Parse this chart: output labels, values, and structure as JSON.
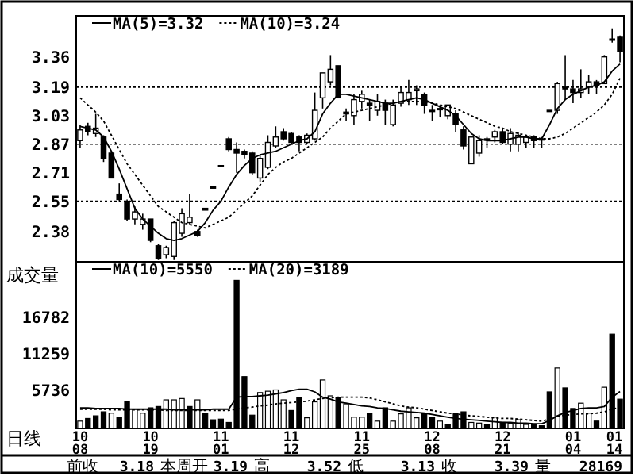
{
  "chart_data": [
    {
      "type": "candlestick",
      "categories": [
        null,
        null,
        null,
        null,
        null,
        null,
        null,
        null,
        null,
        null,
        null,
        null,
        null,
        null,
        null,
        null,
        null,
        null,
        null,
        null,
        null,
        null,
        null,
        null,
        null,
        null,
        null,
        null,
        null,
        null,
        null,
        null,
        null,
        null,
        null,
        null,
        null,
        null,
        null,
        null,
        null,
        null,
        null,
        null,
        null,
        null,
        null,
        null,
        null,
        null,
        null,
        null,
        null,
        null,
        null,
        null,
        null,
        null,
        null,
        null,
        null,
        null,
        null,
        null,
        null,
        null,
        null,
        null,
        null,
        null
      ],
      "ohlc": [
        [
          2.89,
          2.98,
          2.85,
          2.95
        ],
        [
          2.97,
          2.99,
          2.92,
          2.94
        ],
        [
          2.93,
          3.04,
          2.91,
          2.96
        ],
        [
          2.91,
          2.92,
          2.77,
          2.79
        ],
        [
          2.82,
          2.83,
          2.68,
          2.68
        ],
        [
          2.59,
          2.65,
          2.55,
          2.56
        ],
        [
          2.55,
          2.56,
          2.44,
          2.45
        ],
        [
          2.45,
          2.52,
          2.42,
          2.49
        ],
        [
          2.42,
          2.48,
          2.39,
          2.45
        ],
        [
          2.45,
          2.45,
          2.32,
          2.33
        ],
        [
          2.3,
          2.31,
          2.22,
          2.23
        ],
        [
          2.25,
          2.3,
          2.23,
          2.29
        ],
        [
          2.24,
          2.44,
          2.22,
          2.43
        ],
        [
          2.37,
          2.51,
          2.35,
          2.48
        ],
        [
          2.43,
          2.59,
          2.42,
          2.46
        ],
        [
          2.38,
          2.39,
          2.35,
          2.36
        ],
        [
          2.51,
          2.51,
          2.5,
          2.5
        ],
        [
          2.63,
          2.63,
          2.63,
          2.63
        ],
        [
          2.75,
          2.75,
          2.75,
          2.75
        ],
        [
          2.9,
          2.91,
          2.83,
          2.84
        ],
        [
          2.84,
          2.88,
          2.71,
          2.82
        ],
        [
          2.83,
          2.84,
          2.79,
          2.81
        ],
        [
          2.82,
          2.83,
          2.7,
          2.71
        ],
        [
          2.68,
          2.81,
          2.66,
          2.79
        ],
        [
          2.74,
          2.92,
          2.73,
          2.88
        ],
        [
          2.86,
          2.97,
          2.85,
          2.91
        ],
        [
          2.94,
          2.96,
          2.89,
          2.9
        ],
        [
          2.93,
          2.94,
          2.87,
          2.88
        ],
        [
          2.91,
          2.92,
          2.83,
          2.88
        ],
        [
          2.88,
          2.93,
          2.87,
          2.92
        ],
        [
          2.9,
          3.16,
          2.89,
          3.06
        ],
        [
          3.13,
          3.27,
          3.07,
          3.27
        ],
        [
          3.22,
          3.37,
          3.2,
          3.29
        ],
        [
          3.31,
          3.31,
          3.13,
          3.13
        ],
        [
          3.05,
          3.07,
          3.0,
          3.04
        ],
        [
          3.03,
          3.15,
          2.98,
          3.12
        ],
        [
          3.11,
          3.17,
          3.07,
          3.15
        ],
        [
          3.1,
          3.12,
          3.0,
          3.09
        ],
        [
          3.06,
          3.15,
          3.03,
          3.11
        ],
        [
          3.1,
          3.12,
          2.98,
          3.06
        ],
        [
          2.98,
          3.12,
          2.97,
          3.09
        ],
        [
          3.1,
          3.19,
          3.08,
          3.16
        ],
        [
          3.12,
          3.23,
          3.09,
          3.16
        ],
        [
          3.17,
          3.2,
          3.09,
          3.18
        ],
        [
          3.15,
          3.16,
          3.04,
          3.09
        ],
        [
          3.06,
          3.09,
          3.0,
          3.06
        ],
        [
          3.07,
          3.09,
          3.02,
          3.07
        ],
        [
          3.03,
          3.09,
          3.01,
          3.09
        ],
        [
          3.04,
          3.06,
          2.94,
          2.98
        ],
        [
          2.95,
          2.97,
          2.84,
          2.86
        ],
        [
          2.76,
          2.91,
          2.76,
          2.91
        ],
        [
          2.82,
          2.92,
          2.8,
          2.89
        ],
        [
          2.9,
          2.91,
          2.85,
          2.9
        ],
        [
          2.91,
          2.95,
          2.88,
          2.94
        ],
        [
          2.94,
          2.96,
          2.87,
          2.88
        ],
        [
          2.87,
          2.96,
          2.83,
          2.93
        ],
        [
          2.87,
          2.94,
          2.83,
          2.92
        ],
        [
          2.88,
          2.92,
          2.85,
          2.91
        ],
        [
          2.91,
          2.92,
          2.85,
          2.89
        ],
        [
          2.9,
          2.91,
          2.85,
          2.9
        ],
        [
          3.06,
          3.06,
          3.06,
          3.06
        ],
        [
          3.06,
          3.22,
          3.04,
          3.21
        ],
        [
          3.19,
          3.37,
          3.12,
          3.18
        ],
        [
          3.18,
          3.23,
          3.1,
          3.16
        ],
        [
          3.16,
          3.29,
          3.13,
          3.18
        ],
        [
          3.19,
          3.26,
          3.15,
          3.22
        ],
        [
          3.22,
          3.23,
          3.15,
          3.2
        ],
        [
          3.21,
          3.37,
          3.21,
          3.36
        ],
        [
          3.46,
          3.52,
          3.44,
          3.46
        ],
        [
          3.47,
          3.48,
          3.33,
          3.39
        ]
      ],
      "series": [
        {
          "name": "MA(5)=3.32",
          "type": "line",
          "color": "#000000",
          "line_style": "solid",
          "values": [
            2.97,
            2.96,
            2.95,
            2.91,
            2.83,
            2.73,
            2.62,
            2.51,
            2.45,
            2.41,
            2.37,
            2.34,
            2.33,
            2.34,
            2.36,
            2.38,
            2.43,
            2.5,
            2.55,
            2.63,
            2.7,
            2.75,
            2.79,
            2.81,
            2.82,
            2.83,
            2.85,
            2.87,
            2.89,
            2.9,
            2.94,
            3.04,
            3.1,
            3.15,
            3.15,
            3.14,
            3.13,
            3.12,
            3.11,
            3.1,
            3.1,
            3.11,
            3.12,
            3.13,
            3.12,
            3.1,
            3.08,
            3.06,
            3.03,
            2.98,
            2.93,
            2.9,
            2.89,
            2.89,
            2.89,
            2.9,
            2.91,
            2.91,
            2.9,
            2.9,
            2.98,
            3.07,
            3.12,
            3.15,
            3.17,
            3.19,
            3.2,
            3.22,
            3.28,
            3.32
          ]
        },
        {
          "name": "MA(10)=3.24",
          "type": "line",
          "color": "#000000",
          "line_style": "dotted",
          "values": [
            3.13,
            3.09,
            3.05,
            3.0,
            2.92,
            2.84,
            2.76,
            2.7,
            2.64,
            2.58,
            2.52,
            2.49,
            2.46,
            2.43,
            2.42,
            2.41,
            2.4,
            2.42,
            2.44,
            2.46,
            2.5,
            2.54,
            2.58,
            2.64,
            2.7,
            2.74,
            2.77,
            2.79,
            2.82,
            2.85,
            2.88,
            2.91,
            2.96,
            3.0,
            3.04,
            3.05,
            3.06,
            3.07,
            3.08,
            3.09,
            3.1,
            3.11,
            3.11,
            3.11,
            3.11,
            3.1,
            3.09,
            3.08,
            3.07,
            3.05,
            3.03,
            3.01,
            2.99,
            2.97,
            2.96,
            2.94,
            2.93,
            2.92,
            2.91,
            2.9,
            2.9,
            2.91,
            2.93,
            2.96,
            2.99,
            3.02,
            3.05,
            3.09,
            3.15,
            3.24
          ]
        }
      ],
      "ylim": [
        2.21,
        3.59
      ],
      "yticks": [
        2.38,
        2.55,
        2.71,
        2.87,
        3.03,
        3.19,
        3.36
      ],
      "ref_lines": [
        {
          "axis": "y",
          "value": 3.19,
          "line_style": "dotted",
          "color": "#000000"
        },
        {
          "axis": "y",
          "value": 2.87,
          "line_style": "dotted",
          "color": "#000000"
        },
        {
          "axis": "y",
          "value": 2.55,
          "line_style": "dotted",
          "color": "#000000"
        }
      ],
      "legend": "top left",
      "tick_labels": "y"
    },
    {
      "type": "bar",
      "categories": [
        "10\n08",
        null,
        null,
        null,
        null,
        null,
        null,
        null,
        null,
        "10\n19",
        null,
        null,
        null,
        null,
        null,
        null,
        null,
        null,
        "11\n01",
        null,
        null,
        null,
        null,
        null,
        null,
        null,
        null,
        "11\n12",
        null,
        null,
        null,
        null,
        null,
        null,
        null,
        null,
        "11\n25",
        null,
        null,
        null,
        null,
        null,
        null,
        null,
        null,
        "12\n08",
        null,
        null,
        null,
        null,
        null,
        null,
        null,
        null,
        "12\n21",
        null,
        null,
        null,
        null,
        null,
        null,
        null,
        null,
        "01\n04",
        null,
        null,
        null,
        null,
        null,
        "01\n14"
      ],
      "ylabel": "成交量",
      "series": [
        {
          "type": "bar",
          "values": [
            1100,
            1500,
            1900,
            2500,
            2300,
            1700,
            4000,
            2900,
            2300,
            3100,
            3300,
            4300,
            4300,
            4500,
            3300,
            4300,
            2300,
            1300,
            1400,
            900,
            22300,
            7800,
            2000,
            5400,
            5600,
            5800,
            4300,
            2700,
            4600,
            1600,
            4000,
            7300,
            4900,
            4600,
            3700,
            1700,
            1700,
            2200,
            1100,
            3100,
            1100,
            2200,
            3100,
            1600,
            2300,
            1700,
            1100,
            600,
            2300,
            2500,
            900,
            800,
            600,
            1700,
            900,
            800,
            1300,
            600,
            600,
            400,
            5500,
            9100,
            6100,
            3000,
            3800,
            2300,
            1100,
            6200,
            14200,
            4400
          ],
          "colors": [
            "#ffffff",
            "#000000",
            "#000000",
            "#000000",
            "#ffffff",
            "#000000",
            "#000000",
            "#ffffff",
            "#ffffff",
            "#000000",
            "#000000",
            "#ffffff",
            "#ffffff",
            "#ffffff",
            "#000000",
            "#ffffff",
            "#000000",
            "#000000",
            "#000000",
            "#000000",
            "#000000",
            "#000000",
            "#000000",
            "#ffffff",
            "#ffffff",
            "#ffffff",
            "#ffffff",
            "#000000",
            "#000000",
            "#ffffff",
            "#ffffff",
            "#ffffff",
            "#ffffff",
            "#000000",
            "#ffffff",
            "#ffffff",
            "#ffffff",
            "#000000",
            "#ffffff",
            "#000000",
            "#ffffff",
            "#ffffff",
            "#ffffff",
            "#ffffff",
            "#000000",
            "#000000",
            "#ffffff",
            "#000000",
            "#000000",
            "#000000",
            "#ffffff",
            "#ffffff",
            "#000000",
            "#ffffff",
            "#000000",
            "#ffffff",
            "#ffffff",
            "#ffffff",
            "#000000",
            "#000000",
            "#000000",
            "#ffffff",
            "#000000",
            "#000000",
            "#ffffff",
            "#ffffff",
            "#000000",
            "#ffffff",
            "#000000",
            "#000000"
          ]
        },
        {
          "name": "MA(10)=5550",
          "type": "line",
          "color": "#000000",
          "line_style": "solid",
          "values": [
            3100,
            3100,
            3000,
            3000,
            3000,
            3000,
            2900,
            2900,
            2900,
            2900,
            2900,
            2900,
            2800,
            2800,
            2800,
            2800,
            2800,
            2900,
            2900,
            2900,
            4700,
            4800,
            4800,
            4900,
            5000,
            5200,
            5400,
            5700,
            5900,
            5900,
            5500,
            4700,
            4400,
            4000,
            3800,
            3600,
            3400,
            3300,
            3100,
            3000,
            2800,
            2600,
            2500,
            2400,
            2300,
            2100,
            1900,
            1700,
            1500,
            1400,
            1300,
            1200,
            1100,
            1000,
            900,
            900,
            800,
            800,
            700,
            700,
            1200,
            1900,
            2400,
            2700,
            3000,
            3100,
            3100,
            3300,
            4700,
            5550
          ]
        },
        {
          "name": "MA(20)=3189",
          "type": "line",
          "color": "#000000",
          "line_style": "dotted",
          "values": [
            2900,
            2900,
            2900,
            2900,
            2800,
            2800,
            2800,
            2800,
            2800,
            2800,
            2800,
            2700,
            2700,
            2700,
            2700,
            2700,
            2700,
            2700,
            2700,
            2700,
            2900,
            3100,
            3200,
            3400,
            3500,
            3700,
            3800,
            3900,
            4000,
            4100,
            4300,
            4500,
            4600,
            4700,
            4700,
            4700,
            4700,
            4600,
            4300,
            4000,
            3700,
            3400,
            3200,
            3100,
            2900,
            2700,
            2500,
            2300,
            2200,
            2000,
            1900,
            1800,
            1700,
            1600,
            1500,
            1500,
            1400,
            1300,
            1200,
            1100,
            1400,
            1800,
            2000,
            2100,
            2200,
            2200,
            2300,
            2500,
            2900,
            3189
          ]
        }
      ],
      "ylim": [
        0,
        25100
      ],
      "yticks": [
        5736,
        11259,
        16782
      ],
      "legend": "top left",
      "annotations": [
        "日线",
        "前收",
        "3.18",
        "本周开",
        "3.19",
        "高",
        "3.52",
        "低",
        "3.13",
        "收",
        "3.39",
        "量",
        "28169"
      ]
    }
  ]
}
